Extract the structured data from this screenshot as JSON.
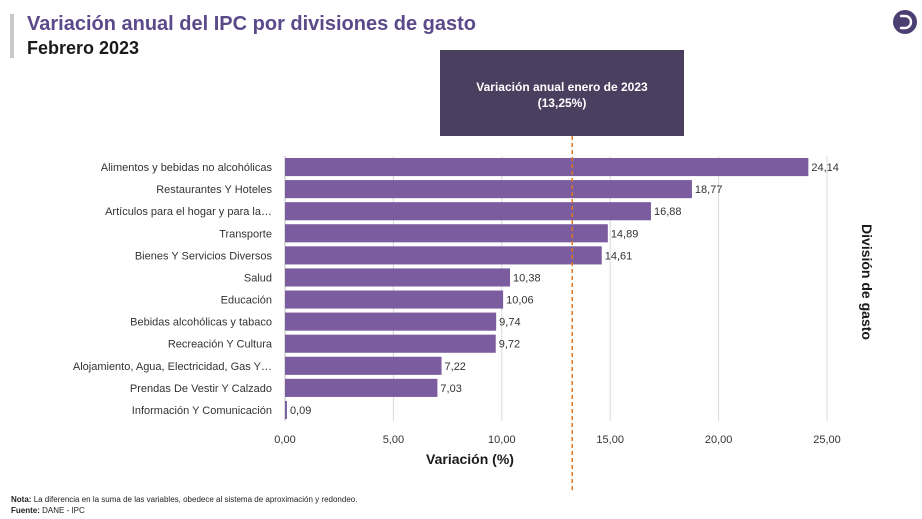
{
  "header": {
    "title": "Variación anual del IPC por divisiones de gasto",
    "subtitle": "Febrero 2023"
  },
  "callout": {
    "line1": "Variación anual enero de 2023",
    "line2": "(13,25%)"
  },
  "footer": {
    "note_label": "Nota:",
    "note_text": "La diferencia en la suma de las variables, obedece al sistema de aproximación y redondeo.",
    "source_label": "Fuente:",
    "source_text": "DANE - IPC"
  },
  "logo_icon": "circle-d-logo",
  "chart_data": {
    "type": "bar",
    "orientation": "horizontal",
    "categories": [
      "Alimentos y bebidas no alcohólicas",
      "Restaurantes Y Hoteles",
      "Artículos para el hogar y para la…",
      "Transporte",
      "Bienes Y Servicios Diversos",
      "Salud",
      "Educación",
      "Bebidas alcohólicas y tabaco",
      "Recreación Y Cultura",
      "Alojamiento, Agua, Electricidad, Gas Y…",
      "Prendas De Vestir Y Calzado",
      "Información Y Comunicación"
    ],
    "values": [
      24.14,
      18.77,
      16.88,
      14.89,
      14.61,
      10.38,
      10.06,
      9.74,
      9.72,
      7.22,
      7.03,
      0.09
    ],
    "value_labels": [
      "24,14",
      "18,77",
      "16,88",
      "14,89",
      "14,61",
      "10,38",
      "10,06",
      "9,74",
      "9,72",
      "7,22",
      "7,03",
      "0,09"
    ],
    "xlim": [
      0,
      25
    ],
    "xticks": [
      0,
      5,
      10,
      15,
      20,
      25
    ],
    "xtick_labels": [
      "0,00",
      "5,00",
      "10,00",
      "15,00",
      "20,00",
      "25,00"
    ],
    "xlabel": "Variación (%)",
    "ylabel": "División de gasto",
    "reference_line": {
      "value": 13.25,
      "style": "dashed",
      "color": "#e0761f"
    },
    "bar_color": "#7b5c9e",
    "callout_color": "#4b3f60",
    "grid": true
  }
}
